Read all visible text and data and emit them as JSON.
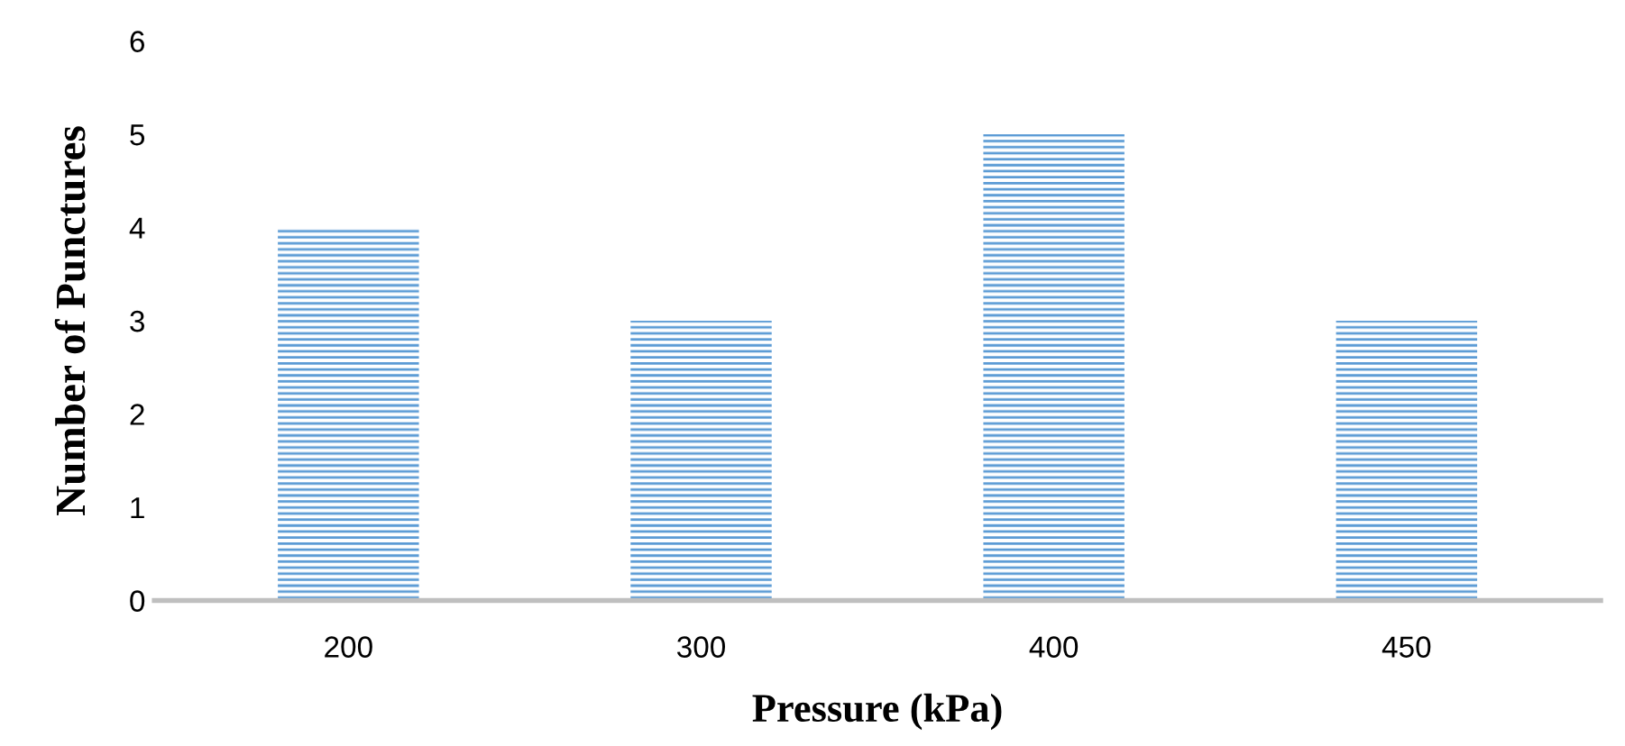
{
  "chart_data": {
    "type": "bar",
    "xlabel": "Pressure (kPa)",
    "ylabel": "Number of Punctures",
    "categories": [
      "200",
      "300",
      "400",
      "450"
    ],
    "values": [
      4,
      3,
      5,
      3
    ],
    "color": "#5b9bd5",
    "ylim": [
      0,
      6
    ],
    "yticks": [
      0,
      1,
      2,
      3,
      4,
      5,
      6
    ],
    "grid": false,
    "legend": false
  }
}
